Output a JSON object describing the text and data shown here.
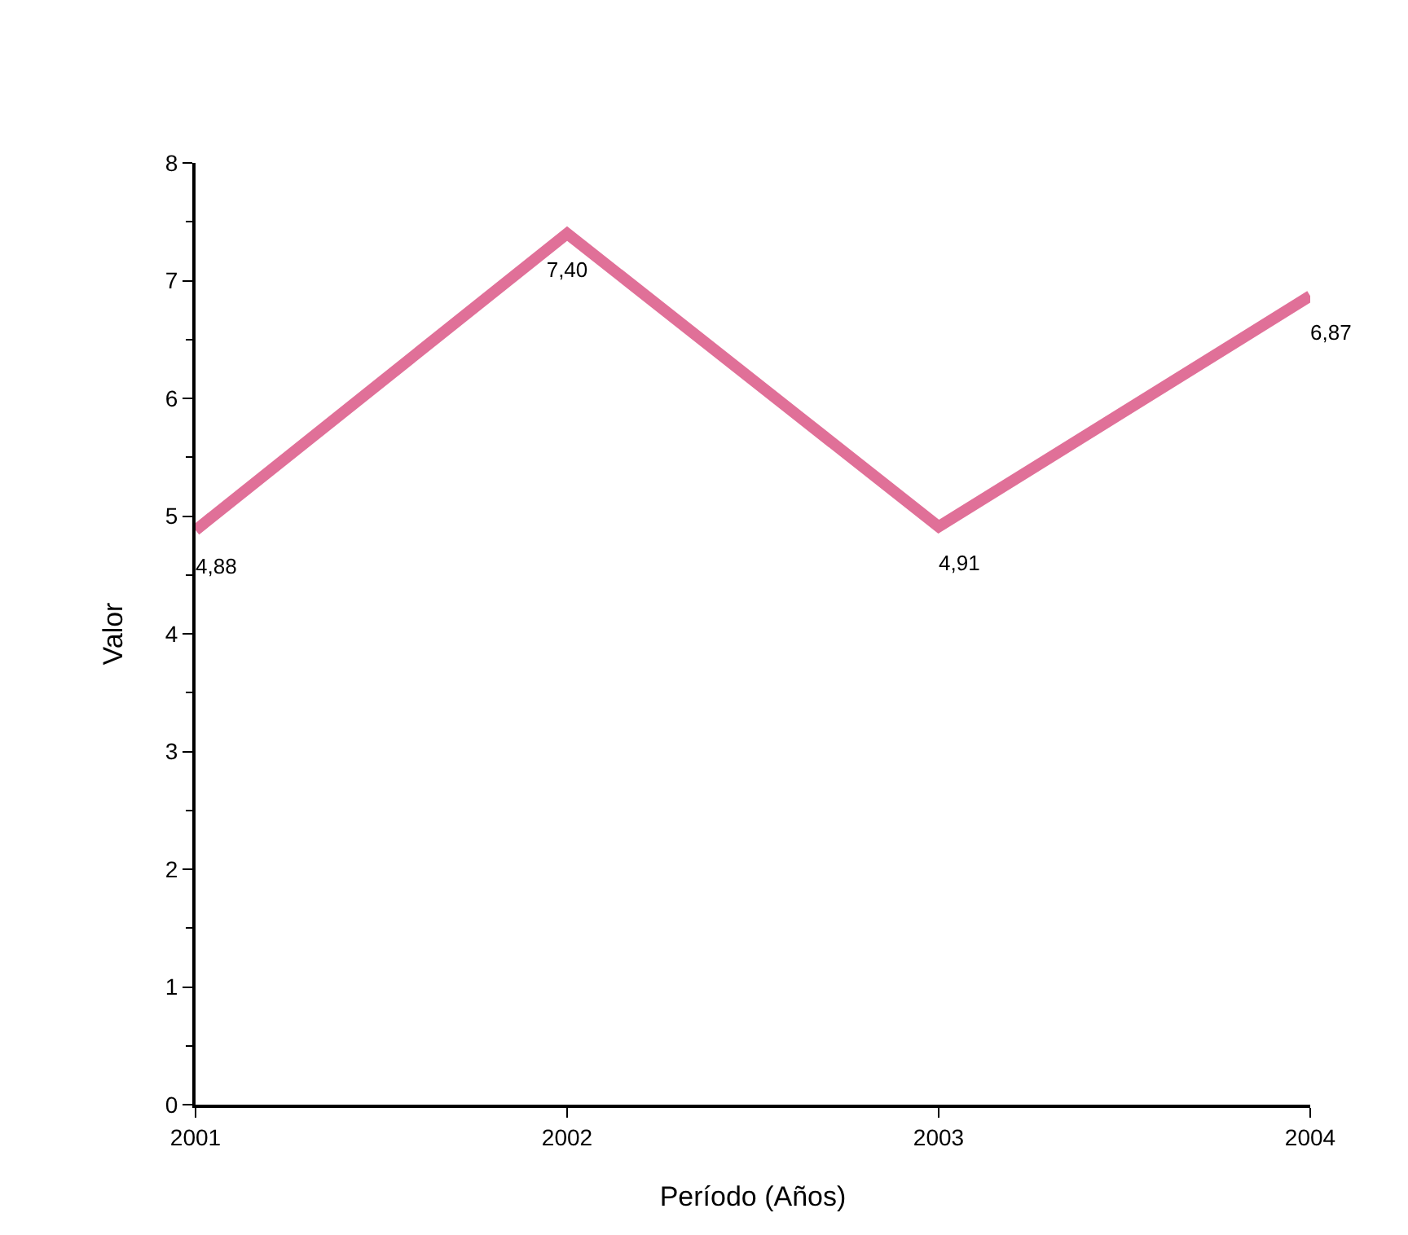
{
  "chart_data": {
    "type": "line",
    "xlabel": "Período (Años)",
    "ylabel": "Valor",
    "categories": [
      "2001",
      "2002",
      "2003",
      "2004"
    ],
    "values": [
      4.88,
      7.4,
      4.91,
      6.87
    ],
    "value_labels": [
      "4,88",
      "7,40",
      "4,91",
      "6,87"
    ],
    "color": "#e07098",
    "ylim": [
      0,
      8
    ],
    "yticks": [
      0,
      1,
      2,
      3,
      4,
      5,
      6,
      7,
      8
    ],
    "grid": false,
    "legend": false,
    "marker": "none",
    "line_style": "solid"
  }
}
